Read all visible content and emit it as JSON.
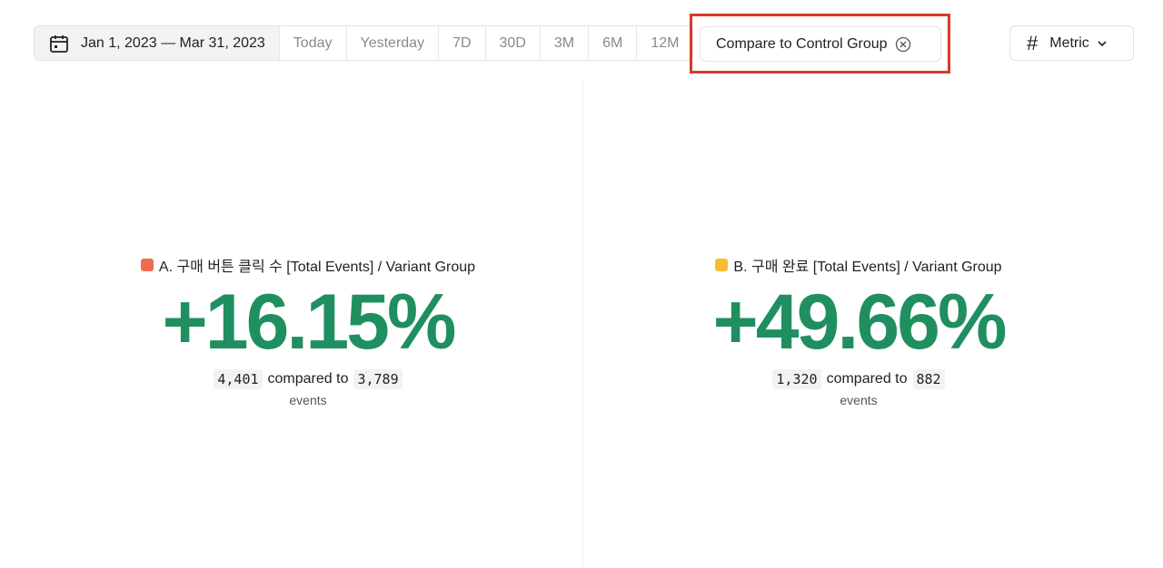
{
  "toolbar": {
    "date_range": "Jan 1, 2023 — Mar 31, 2023",
    "presets": [
      "Today",
      "Yesterday",
      "7D",
      "30D",
      "3M",
      "6M",
      "12M"
    ],
    "compare_label": "Compare to Control Group",
    "metric_label": "Metric",
    "metric_symbol": "#"
  },
  "metrics": [
    {
      "title": "A. 구매 버튼 클릭 수 [Total Events] / Variant Group",
      "color": "#f06b4f",
      "value": "+16.15%",
      "current": "4,401",
      "compared_text": "compared to",
      "previous": "3,789",
      "unit": "events"
    },
    {
      "title": "B. 구매 완료 [Total Events] / Variant Group",
      "color": "#f5bd2f",
      "value": "+49.66%",
      "current": "1,320",
      "compared_text": "compared to",
      "previous": "882",
      "unit": "events"
    }
  ],
  "colors": {
    "positive": "#1f8f5f",
    "highlight": "#d63a2a"
  }
}
